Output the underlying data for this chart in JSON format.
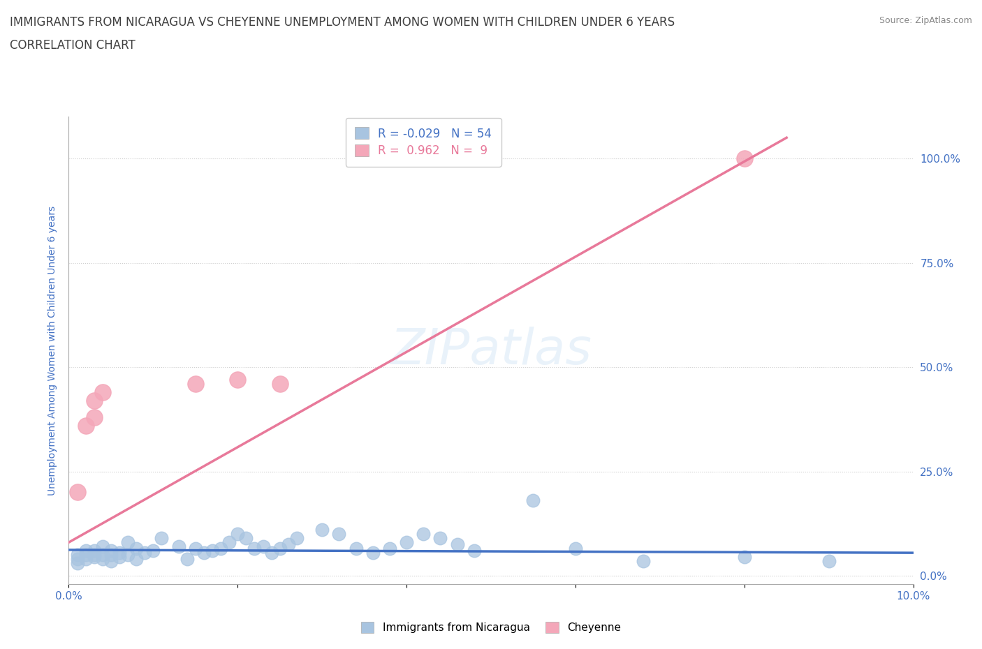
{
  "title_line1": "IMMIGRANTS FROM NICARAGUA VS CHEYENNE UNEMPLOYMENT AMONG WOMEN WITH CHILDREN UNDER 6 YEARS",
  "title_line2": "CORRELATION CHART",
  "source": "Source: ZipAtlas.com",
  "ylabel": "Unemployment Among Women with Children Under 6 years",
  "xlim": [
    0.0,
    0.1
  ],
  "ylim": [
    -0.02,
    1.1
  ],
  "yticks": [
    0.0,
    0.25,
    0.5,
    0.75,
    1.0
  ],
  "ytick_labels": [
    "0.0%",
    "25.0%",
    "50.0%",
    "75.0%",
    "100.0%"
  ],
  "xtick_positions": [
    0.0,
    0.02,
    0.04,
    0.06,
    0.08,
    0.1
  ],
  "xtick_labels": [
    "0.0%",
    "",
    "",
    "",
    "",
    "10.0%"
  ],
  "watermark": "ZIPatlas",
  "blue_R": -0.029,
  "blue_N": 54,
  "pink_R": 0.962,
  "pink_N": 9,
  "blue_color": "#a8c4e0",
  "pink_color": "#f4a7b9",
  "blue_line_color": "#4472c4",
  "pink_line_color": "#e8799a",
  "title_color": "#404040",
  "axis_label_color": "#4472c4",
  "legend_text_color": "#4472c4",
  "blue_scatter_x": [
    0.001,
    0.001,
    0.001,
    0.002,
    0.002,
    0.002,
    0.003,
    0.003,
    0.003,
    0.004,
    0.004,
    0.004,
    0.005,
    0.005,
    0.005,
    0.006,
    0.006,
    0.007,
    0.007,
    0.008,
    0.008,
    0.009,
    0.01,
    0.011,
    0.013,
    0.014,
    0.015,
    0.016,
    0.017,
    0.018,
    0.019,
    0.02,
    0.021,
    0.022,
    0.023,
    0.024,
    0.025,
    0.026,
    0.027,
    0.03,
    0.032,
    0.034,
    0.036,
    0.038,
    0.04,
    0.042,
    0.044,
    0.046,
    0.048,
    0.055,
    0.06,
    0.068,
    0.08,
    0.09
  ],
  "blue_scatter_y": [
    0.04,
    0.05,
    0.03,
    0.05,
    0.04,
    0.06,
    0.05,
    0.045,
    0.06,
    0.05,
    0.04,
    0.07,
    0.06,
    0.05,
    0.035,
    0.055,
    0.045,
    0.08,
    0.05,
    0.065,
    0.04,
    0.055,
    0.06,
    0.09,
    0.07,
    0.04,
    0.065,
    0.055,
    0.06,
    0.065,
    0.08,
    0.1,
    0.09,
    0.065,
    0.07,
    0.055,
    0.065,
    0.075,
    0.09,
    0.11,
    0.1,
    0.065,
    0.055,
    0.065,
    0.08,
    0.1,
    0.09,
    0.075,
    0.06,
    0.18,
    0.065,
    0.035,
    0.045,
    0.035
  ],
  "pink_scatter_x": [
    0.001,
    0.002,
    0.003,
    0.003,
    0.004,
    0.015,
    0.02,
    0.025,
    0.08
  ],
  "pink_scatter_y": [
    0.2,
    0.36,
    0.38,
    0.42,
    0.44,
    0.46,
    0.47,
    0.46,
    1.0
  ],
  "blue_line_x0": 0.0,
  "blue_line_x1": 0.1,
  "blue_line_y0": 0.062,
  "blue_line_y1": 0.055,
  "pink_line_x0": 0.0,
  "pink_line_x1": 0.085,
  "pink_line_y0": 0.08,
  "pink_line_y1": 1.05
}
